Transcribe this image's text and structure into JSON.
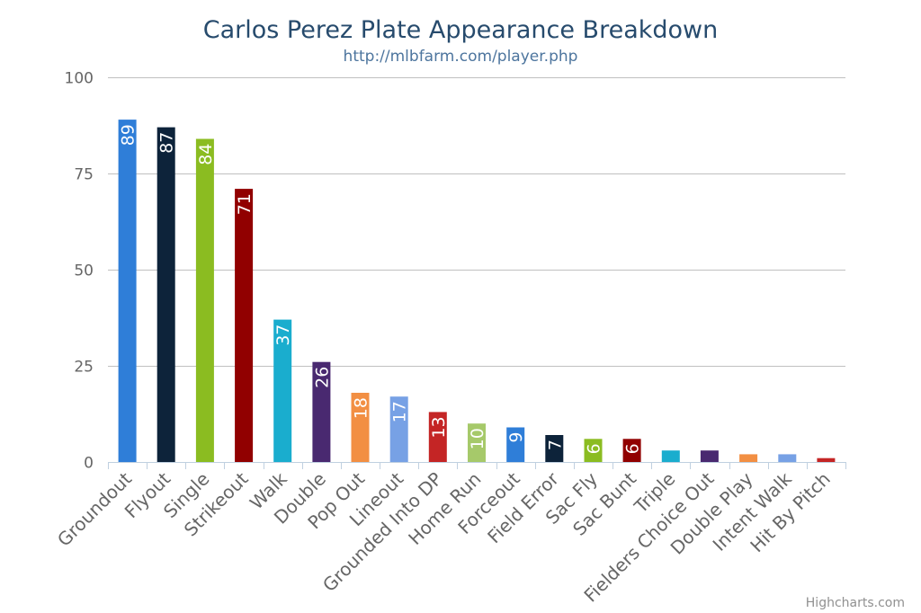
{
  "chart_data": {
    "type": "bar",
    "title": "Carlos Perez Plate Appearance Breakdown",
    "subtitle": "http://mlbfarm.com/player.php",
    "xlabel": "",
    "ylabel": "",
    "ylim": [
      0,
      100
    ],
    "yticks": [
      0,
      25,
      50,
      75,
      100
    ],
    "grid": true,
    "legend": "none",
    "categories": [
      "Groundout",
      "Flyout",
      "Single",
      "Strikeout",
      "Walk",
      "Double",
      "Pop Out",
      "Lineout",
      "Grounded Into DP",
      "Home Run",
      "Forceout",
      "Field Error",
      "Sac Fly",
      "Sac Bunt",
      "Triple",
      "Fielders Choice Out",
      "Double Play",
      "Intent Walk",
      "Hit By Pitch"
    ],
    "values": [
      89,
      87,
      84,
      71,
      37,
      26,
      18,
      17,
      13,
      10,
      9,
      7,
      6,
      6,
      3,
      3,
      2,
      2,
      1
    ],
    "data_labels": [
      "89",
      "87",
      "84",
      "71",
      "37",
      "26",
      "18",
      "17",
      "13",
      "10",
      "9",
      "7",
      "6",
      "6",
      "",
      "",
      "",
      "",
      ""
    ],
    "colors": [
      "#2f7ed8",
      "#0d233a",
      "#8bbc21",
      "#910000",
      "#1aadce",
      "#492970",
      "#f28f43",
      "#77a1e5",
      "#c42525",
      "#a6c96a",
      "#2f7ed8",
      "#0d233a",
      "#8bbc21",
      "#910000",
      "#1aadce",
      "#492970",
      "#f28f43",
      "#77a1e5",
      "#c42525"
    ]
  },
  "credits": "Highcharts.com"
}
